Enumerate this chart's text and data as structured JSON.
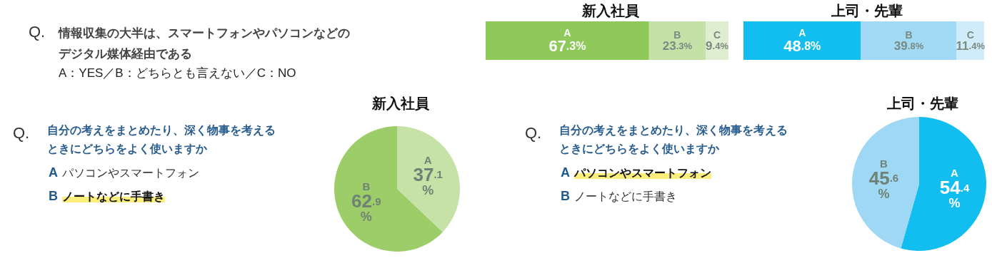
{
  "chart_data": [
    {
      "type": "bar",
      "orientation": "horizontal",
      "stacked": true,
      "title": "新入社員",
      "annotations": [
        "Q.",
        "情報収集の大半は、スマートフォンやパソコンなどの",
        "デジタル媒体経由である",
        "A：YES／B：どちらとも言えない／C：NO"
      ],
      "categories": [
        null
      ],
      "legend": false,
      "series": [
        {
          "name": "A",
          "color": "#8fc95a",
          "values": [
            67.3
          ],
          "value_labels": [
            "67.3%"
          ]
        },
        {
          "name": "B",
          "color": "#c6e1a8",
          "values": [
            23.3
          ],
          "value_labels": [
            "23.3%"
          ]
        },
        {
          "name": "C",
          "color": "#dfeed0",
          "values": [
            9.4
          ],
          "value_labels": [
            "9.4%"
          ]
        }
      ]
    },
    {
      "type": "bar",
      "orientation": "horizontal",
      "stacked": true,
      "title": "上司・先輩",
      "categories": [
        null
      ],
      "legend": false,
      "series": [
        {
          "name": "A",
          "color": "#12bdf0",
          "values": [
            48.8
          ],
          "value_labels": [
            "48.8%"
          ]
        },
        {
          "name": "B",
          "color": "#a2d9f5",
          "values": [
            39.8
          ],
          "value_labels": [
            "39.8%"
          ]
        },
        {
          "name": "C",
          "color": "#d0ebfa",
          "values": [
            11.4
          ],
          "value_labels": [
            "11.4%"
          ]
        }
      ]
    },
    {
      "type": "pie",
      "title": "新入社員",
      "annotations": [
        "Q.",
        "自分の考えをまとめたり、深く物事を考える",
        "ときにどちらをよく使いますか",
        "パソコンやスマートフォン",
        "ノートなどに手書き"
      ],
      "categories": [
        "A",
        "B"
      ],
      "values": [
        37.1,
        62.9
      ],
      "value_labels": [
        "37.1%",
        "62.9%"
      ],
      "colors": [
        "#c6e2a6",
        "#9ccd69"
      ]
    },
    {
      "type": "pie",
      "title": "上司・先輩",
      "annotations": [
        "Q.",
        "自分の考えをまとめたり、深く物事を考える",
        "ときにどちらをよく使いますか",
        "パソコンやスマートフォン",
        "ノートなどに手書き"
      ],
      "categories": [
        "A",
        "B"
      ],
      "values": [
        54.4,
        45.6
      ],
      "value_labels": [
        "54.4%",
        "45.6%"
      ],
      "colors": [
        "#12bdf0",
        "#9fd8f5"
      ]
    }
  ]
}
